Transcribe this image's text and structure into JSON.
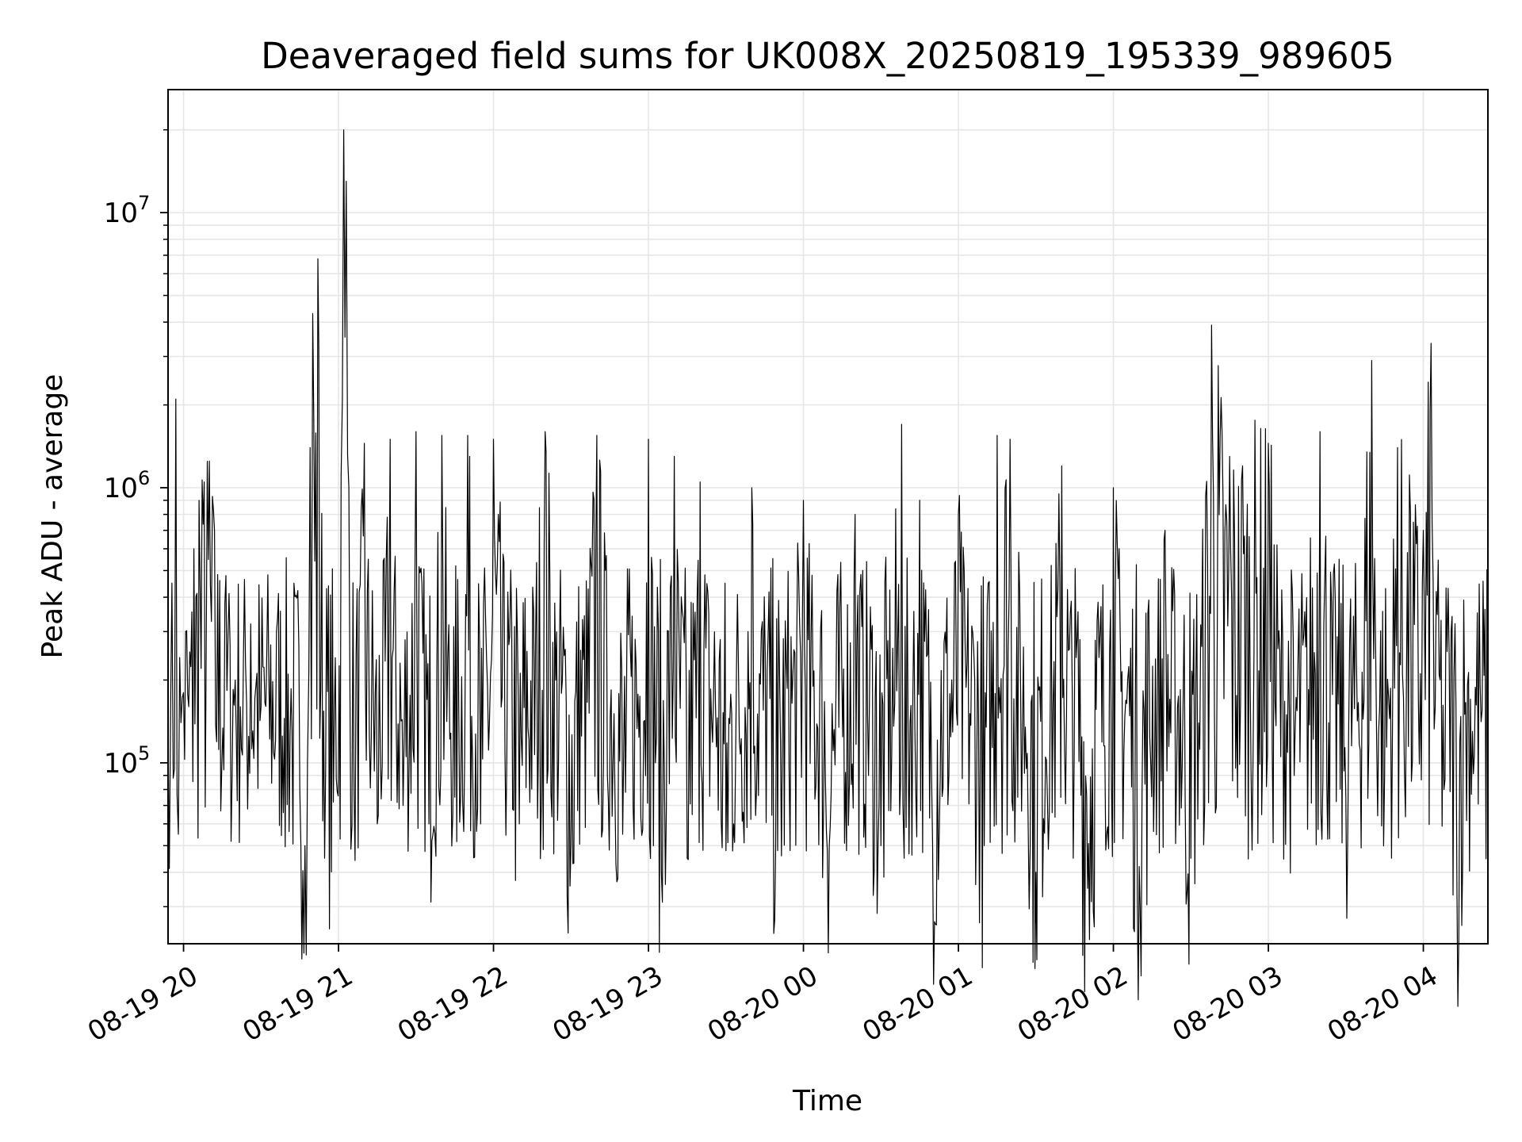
{
  "chart_data": {
    "type": "line",
    "title": "Deaveraged field sums for UK008X_20250819_195339_989605",
    "xlabel": "Time",
    "ylabel": "Peak ADU - average",
    "x_scale": "time",
    "y_scale": "log",
    "xlim": [
      "2025-08-19 19:54",
      "2025-08-20 04:25"
    ],
    "ylim": [
      22000,
      28000000
    ],
    "x_ticks": [
      {
        "value": "2025-08-19 20:00",
        "label": "08-19 20"
      },
      {
        "value": "2025-08-19 21:00",
        "label": "08-19 21"
      },
      {
        "value": "2025-08-19 22:00",
        "label": "08-19 22"
      },
      {
        "value": "2025-08-19 23:00",
        "label": "08-19 23"
      },
      {
        "value": "2025-08-20 00:00",
        "label": "08-20 00"
      },
      {
        "value": "2025-08-20 01:00",
        "label": "08-20 01"
      },
      {
        "value": "2025-08-20 02:00",
        "label": "08-20 02"
      },
      {
        "value": "2025-08-20 03:00",
        "label": "08-20 03"
      },
      {
        "value": "2025-08-20 04:00",
        "label": "08-20 04"
      }
    ],
    "y_ticks": [
      {
        "value": 100000,
        "base": "10",
        "exp": "5"
      },
      {
        "value": 1000000,
        "base": "10",
        "exp": "6"
      },
      {
        "value": 10000000,
        "base": "10",
        "exp": "7"
      }
    ],
    "grid": true,
    "grid_minor_y": true,
    "line_color": "#000000",
    "grid_color": "#e6e6e6",
    "series": [
      {
        "x": [
          "2025-08-19 19:54",
          "2025-08-19 19:55",
          "2025-08-19 19:56",
          "2025-08-19 19:57",
          "2025-08-19 19:58",
          "2025-08-19 19:59",
          "2025-08-19 20:00",
          "2025-08-19 20:02",
          "2025-08-19 20:04",
          "2025-08-19 20:06",
          "2025-08-19 20:08",
          "2025-08-19 20:10",
          "2025-08-19 20:12",
          "2025-08-19 20:14",
          "2025-08-19 20:16",
          "2025-08-19 20:18",
          "2025-08-19 20:20",
          "2025-08-19 20:22",
          "2025-08-19 20:24",
          "2025-08-19 20:26",
          "2025-08-19 20:28",
          "2025-08-19 20:30",
          "2025-08-19 20:33",
          "2025-08-19 20:36",
          "2025-08-19 20:39",
          "2025-08-19 20:42",
          "2025-08-19 20:45",
          "2025-08-19 20:47",
          "2025-08-19 20:48",
          "2025-08-19 20:49",
          "2025-08-19 20:50",
          "2025-08-19 20:52",
          "2025-08-19 20:55",
          "2025-08-19 20:58",
          "2025-08-19 21:01",
          "2025-08-19 21:02",
          "2025-08-19 21:03",
          "2025-08-19 21:04",
          "2025-08-19 21:06",
          "2025-08-19 21:10",
          "2025-08-19 21:15",
          "2025-08-19 21:20",
          "2025-08-19 21:25",
          "2025-08-19 21:30",
          "2025-08-19 21:35",
          "2025-08-19 21:40",
          "2025-08-19 21:45",
          "2025-08-19 21:50",
          "2025-08-19 21:55",
          "2025-08-19 22:00",
          "2025-08-19 22:10",
          "2025-08-19 22:20",
          "2025-08-19 22:30",
          "2025-08-19 22:40",
          "2025-08-19 22:50",
          "2025-08-19 23:00",
          "2025-08-19 23:05",
          "2025-08-19 23:10",
          "2025-08-19 23:15",
          "2025-08-19 23:20",
          "2025-08-19 23:30",
          "2025-08-19 23:40",
          "2025-08-19 23:50",
          "2025-08-20 00:00",
          "2025-08-20 00:10",
          "2025-08-20 00:20",
          "2025-08-20 00:30",
          "2025-08-20 00:38",
          "2025-08-20 00:39",
          "2025-08-20 00:45",
          "2025-08-20 00:50",
          "2025-08-20 01:00",
          "2025-08-20 01:10",
          "2025-08-20 01:15",
          "2025-08-20 01:20",
          "2025-08-20 01:30",
          "2025-08-20 01:40",
          "2025-08-20 01:50",
          "2025-08-20 02:00",
          "2025-08-20 02:10",
          "2025-08-20 02:20",
          "2025-08-20 02:30",
          "2025-08-20 02:38",
          "2025-08-20 02:45",
          "2025-08-20 02:50",
          "2025-08-20 03:00",
          "2025-08-20 03:10",
          "2025-08-20 03:20",
          "2025-08-20 03:30",
          "2025-08-20 03:40",
          "2025-08-20 03:45",
          "2025-08-20 03:50",
          "2025-08-20 03:55",
          "2025-08-20 04:00",
          "2025-08-20 04:03",
          "2025-08-20 04:05",
          "2025-08-20 04:08",
          "2025-08-20 04:10",
          "2025-08-20 04:13",
          "2025-08-20 04:16",
          "2025-08-20 04:19",
          "2025-08-20 04:22",
          "2025-08-20 04:25"
        ],
        "y": [
          130000,
          165000,
          88000,
          2100000,
          55000,
          140000,
          180000,
          160000,
          600000,
          900000,
          1050000,
          1250000,
          700000,
          460000,
          380000,
          270000,
          200000,
          160000,
          230000,
          320000,
          190000,
          160000,
          210000,
          300000,
          145000,
          130000,
          80000,
          50000,
          100000,
          1400000,
          4300000,
          6800000,
          95000,
          72000,
          1100000,
          20000000,
          13000000,
          1000000,
          80000,
          1450000,
          60000,
          1500000,
          70000,
          1600000,
          60000,
          1550000,
          75000,
          1550000,
          60000,
          1500000,
          60000,
          1600000,
          50000,
          1550000,
          55000,
          1500000,
          40000,
          1300000,
          45000,
          1050000,
          48000,
          1000000,
          48000,
          900000,
          50000,
          800000,
          50000,
          1700000,
          45000,
          900000,
          50000,
          800000,
          50000,
          1550000,
          1500000,
          40000,
          1200000,
          35000,
          1000000,
          42000,
          700000,
          45000,
          3900000,
          1300000,
          1200000,
          1450000,
          90000,
          1600000,
          75000,
          2900000,
          90000,
          1400000,
          800000,
          700000,
          3350000,
          420000,
          80000,
          250000,
          36000,
          150000,
          130000,
          190000,
          85000
        ]
      }
    ]
  }
}
